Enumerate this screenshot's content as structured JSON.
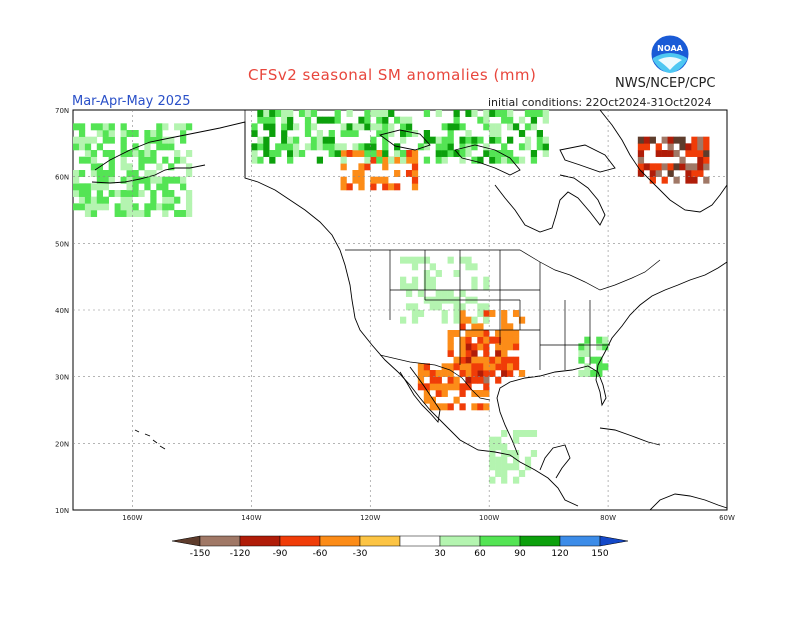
{
  "header": {
    "title": "CFSv2 seasonal SM anomalies (mm)",
    "agency": "NWS/NCEP/CPC",
    "season": "Mar-Apr-May 2025",
    "initial_conditions": "initial conditions: 22Oct2024-31Oct2024",
    "logo_text": "NOAA"
  },
  "axes": {
    "lat_labels": [
      "70N",
      "60N",
      "50N",
      "40N",
      "30N",
      "20N",
      "10N"
    ],
    "lon_labels": [
      "160W",
      "140W",
      "120W",
      "100W",
      "80W",
      "60W"
    ]
  },
  "legend": {
    "values": [
      "-150",
      "-120",
      "-90",
      "-60",
      "-30",
      "30",
      "60",
      "90",
      "120",
      "150"
    ],
    "colors": [
      "#5e3c2c",
      "#a07866",
      "#b01c08",
      "#f03c08",
      "#fc8c18",
      "#fcc444",
      "#ffffff",
      "#b4f4b0",
      "#54e454",
      "#0ca00c",
      "#3c8ce8",
      "#1448c8"
    ]
  },
  "chart_data": {
    "type": "heatmap",
    "title": "CFSv2 seasonal SM anomalies (mm)",
    "units": "mm",
    "lat_range": [
      10,
      70
    ],
    "lon_range": [
      -170,
      -60
    ],
    "grid": "dotted every 10 degrees",
    "regions": [
      {
        "lat": [
          29,
          37
        ],
        "lon": [
          -104,
          -96
        ],
        "anomaly": -100
      },
      {
        "lat": [
          30,
          40
        ],
        "lon": [
          -107,
          -94
        ],
        "anomaly": -45
      },
      {
        "lat": [
          25,
          32
        ],
        "lon": [
          -112,
          -100
        ],
        "anomaly": -60
      },
      {
        "lat": [
          58,
          64
        ],
        "lon": [
          -125,
          -112
        ],
        "anomaly": -50
      },
      {
        "lat": [
          62,
          70
        ],
        "lon": [
          -140,
          -90
        ],
        "anomaly": 70
      },
      {
        "lat": [
          54,
          68
        ],
        "lon": [
          -170,
          -150
        ],
        "anomaly": 60
      },
      {
        "lat": [
          59,
          66
        ],
        "lon": [
          -75,
          -62
        ],
        "anomaly": -110
      },
      {
        "lat": [
          38,
          48
        ],
        "lon": [
          -115,
          -100
        ],
        "anomaly": 40
      },
      {
        "lat": [
          30,
          36
        ],
        "lon": [
          -85,
          -80
        ],
        "anomaly": 60
      },
      {
        "lat": [
          14,
          22
        ],
        "lon": [
          -100,
          -92
        ],
        "anomaly": 40
      }
    ]
  }
}
